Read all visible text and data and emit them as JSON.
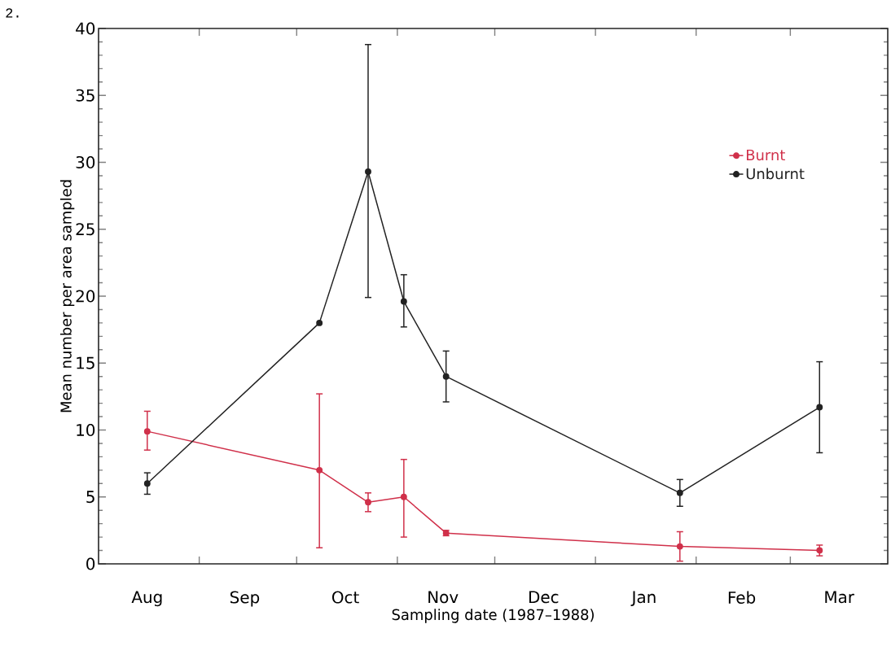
{
  "chart_data": {
    "type": "line",
    "xlabel": "Sampling date (1987–1988)",
    "ylabel": "Mean number per area sampled",
    "annotations": [
      "2."
    ],
    "x": [
      "1987-08-16",
      "1987-10-08",
      "1987-10-23",
      "1987-11-03",
      "1987-11-16",
      "1988-01-27",
      "1988-03-10"
    ],
    "series": [
      {
        "name": "Burnt",
        "color": "#d0304a",
        "values": [
          9.9,
          7.0,
          4.6,
          5.0,
          2.3,
          1.3,
          1.0
        ],
        "errors": [
          [
            8.5,
            11.4
          ],
          [
            1.2,
            12.7
          ],
          [
            3.9,
            5.3
          ],
          [
            2.0,
            7.8
          ],
          [
            2.1,
            2.5
          ],
          [
            0.2,
            2.4
          ],
          [
            0.6,
            1.4
          ]
        ]
      },
      {
        "name": "Unburnt",
        "color": "#222222",
        "values": [
          6.0,
          18.0,
          29.3,
          19.6,
          14.0,
          5.3,
          11.7
        ],
        "errors": [
          [
            5.2,
            6.8
          ],
          null,
          [
            19.9,
            38.8
          ],
          [
            17.7,
            21.6
          ],
          [
            12.1,
            15.9
          ],
          [
            4.3,
            6.3
          ],
          [
            8.3,
            15.1
          ]
        ]
      }
    ],
    "xlim": [
      "1987-08-01",
      "1988-03-31"
    ],
    "xticks": [
      {
        "value": "1987-08-16",
        "label": "Aug"
      },
      {
        "value": "1987-09-01",
        "label": null
      },
      {
        "value": "1987-09-15",
        "label": "Sep"
      },
      {
        "value": "1987-10-01",
        "label": null
      },
      {
        "value": "1987-10-16",
        "label": "Oct"
      },
      {
        "value": "1987-11-01",
        "label": null
      },
      {
        "value": "1987-11-15",
        "label": "Nov"
      },
      {
        "value": "1987-12-01",
        "label": null
      },
      {
        "value": "1987-12-16",
        "label": "Dec"
      },
      {
        "value": "1988-01-01",
        "label": null
      },
      {
        "value": "1988-01-16",
        "label": "Jan"
      },
      {
        "value": "1988-02-01",
        "label": null
      },
      {
        "value": "1988-02-15",
        "label": "Feb"
      },
      {
        "value": "1988-03-01",
        "label": null
      },
      {
        "value": "1988-03-16",
        "label": "Mar"
      }
    ],
    "ylim": [
      0,
      40
    ],
    "yticks": [
      0,
      5,
      10,
      15,
      20,
      25,
      30,
      35,
      40
    ],
    "grid": false,
    "legend": "top right",
    "marker": "circle",
    "line_style": "solid"
  }
}
